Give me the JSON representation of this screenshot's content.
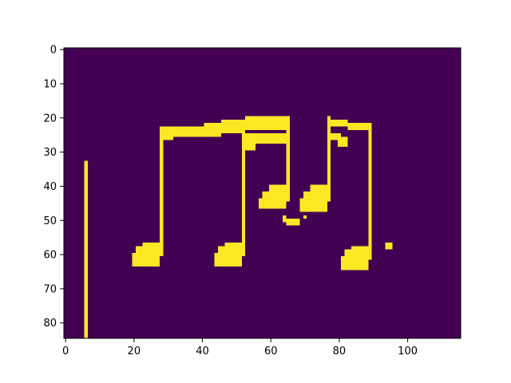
{
  "chart_data": {
    "type": "heatmap",
    "title": "",
    "xlabel": "",
    "ylabel": "",
    "colormap": "viridis",
    "colors": {
      "background": "#440154",
      "foreground": "#fde725"
    },
    "image_size": {
      "cols": 116,
      "rows": 85
    },
    "xlim": [
      -0.5,
      115.5
    ],
    "ylim": [
      84.5,
      -0.5
    ],
    "xticks": [
      0,
      20,
      40,
      60,
      80,
      100
    ],
    "yticks": [
      0,
      10,
      20,
      30,
      40,
      50,
      60,
      70,
      80
    ],
    "grid": false,
    "pixel_values": [
      0,
      1
    ],
    "foreground_regions": [
      {
        "name": "left-bar",
        "x": [
          5.5,
          6.5
        ],
        "y": [
          32.5,
          84.5
        ]
      },
      {
        "name": "note-1-head-a",
        "x": [
          19.5,
          27.5
        ],
        "y": [
          59.5,
          63.5
        ]
      },
      {
        "name": "note-1-head-b",
        "x": [
          20.5,
          28.5
        ],
        "y": [
          57.5,
          60.5
        ]
      },
      {
        "name": "note-1-head-c",
        "x": [
          22.5,
          27.5
        ],
        "y": [
          56.5,
          58.5
        ]
      },
      {
        "name": "note-1-stem",
        "x": [
          27.5,
          28.5
        ],
        "y": [
          22.5,
          60.5
        ]
      },
      {
        "name": "beam-top-1",
        "x": [
          27.5,
          40.5
        ],
        "y": [
          22.5,
          25.5
        ]
      },
      {
        "name": "beam-top-2",
        "x": [
          40.5,
          45.5
        ],
        "y": [
          21.5,
          25.5
        ]
      },
      {
        "name": "beam-top-3",
        "x": [
          45.5,
          52.5
        ],
        "y": [
          20.5,
          24.5
        ]
      },
      {
        "name": "beam-top-4",
        "x": [
          52.5,
          65.5
        ],
        "y": [
          19.5,
          23.5
        ]
      },
      {
        "name": "beam-lower-left",
        "x": [
          27.5,
          31.5
        ],
        "y": [
          25.5,
          26.5
        ]
      },
      {
        "name": "note-2-head-a",
        "x": [
          43.5,
          51.5
        ],
        "y": [
          59.5,
          63.5
        ]
      },
      {
        "name": "note-2-head-b",
        "x": [
          44.5,
          52.5
        ],
        "y": [
          57.5,
          60.5
        ]
      },
      {
        "name": "note-2-head-c",
        "x": [
          46.5,
          51.5
        ],
        "y": [
          56.5,
          58.5
        ]
      },
      {
        "name": "note-2-stem",
        "x": [
          51.5,
          52.5
        ],
        "y": [
          21.5,
          60.5
        ]
      },
      {
        "name": "beam-second-1",
        "x": [
          51.5,
          65.5
        ],
        "y": [
          24.5,
          27.5
        ]
      },
      {
        "name": "beam-second-2",
        "x": [
          51.5,
          55.5
        ],
        "y": [
          27.5,
          29.5
        ]
      },
      {
        "name": "note-3-stem",
        "x": [
          64.5,
          65.5
        ],
        "y": [
          19.5,
          44.5
        ]
      },
      {
        "name": "note-3-head-a",
        "x": [
          56.5,
          64.5
        ],
        "y": [
          43.5,
          46.5
        ]
      },
      {
        "name": "note-3-head-b",
        "x": [
          57.5,
          65.5
        ],
        "y": [
          41.5,
          44.5
        ]
      },
      {
        "name": "note-3-head-c",
        "x": [
          59.5,
          64.5
        ],
        "y": [
          39.5,
          42.5
        ]
      },
      {
        "name": "tie-left",
        "x": [
          63.5,
          64.5
        ],
        "y": [
          48.5,
          50.5
        ]
      },
      {
        "name": "tie-bottom",
        "x": [
          64.5,
          68.5
        ],
        "y": [
          49.5,
          51.5
        ]
      },
      {
        "name": "tie-right",
        "x": [
          69.5,
          70.5
        ],
        "y": [
          48.5,
          49.5
        ]
      },
      {
        "name": "note-4-head-a",
        "x": [
          68.5,
          76.5
        ],
        "y": [
          43.5,
          47.5
        ]
      },
      {
        "name": "note-4-head-b",
        "x": [
          69.5,
          77.5
        ],
        "y": [
          41.5,
          44.5
        ]
      },
      {
        "name": "note-4-head-c",
        "x": [
          71.5,
          76.5
        ],
        "y": [
          39.5,
          42.5
        ]
      },
      {
        "name": "note-4-stem",
        "x": [
          76.5,
          77.5
        ],
        "y": [
          19.5,
          44.5
        ]
      },
      {
        "name": "beam-right-1",
        "x": [
          76.5,
          82.5
        ],
        "y": [
          20.5,
          22.5
        ]
      },
      {
        "name": "beam-right-2",
        "x": [
          82.5,
          89.5
        ],
        "y": [
          21.5,
          23.5
        ]
      },
      {
        "name": "flag-a",
        "x": [
          76.5,
          80.5
        ],
        "y": [
          24.5,
          26.5
        ]
      },
      {
        "name": "flag-b",
        "x": [
          79.5,
          82.5
        ],
        "y": [
          25.5,
          28.5
        ]
      },
      {
        "name": "note-5-head-a",
        "x": [
          80.5,
          88.5
        ],
        "y": [
          60.5,
          64.5
        ]
      },
      {
        "name": "note-5-head-b",
        "x": [
          81.5,
          89.5
        ],
        "y": [
          58.5,
          61.5
        ]
      },
      {
        "name": "note-5-head-c",
        "x": [
          83.5,
          88.5
        ],
        "y": [
          57.5,
          59.5
        ]
      },
      {
        "name": "note-5-stem",
        "x": [
          88.5,
          89.5
        ],
        "y": [
          21.5,
          61.5
        ]
      },
      {
        "name": "dot",
        "x": [
          93.5,
          95.5
        ],
        "y": [
          56.5,
          58.5
        ]
      }
    ]
  }
}
